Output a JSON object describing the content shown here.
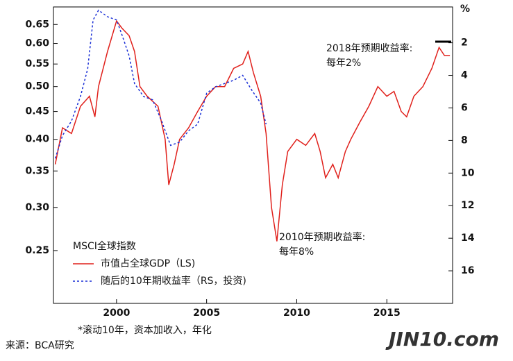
{
  "chart_data": {
    "type": "line",
    "log_y": true,
    "x_ticks_prefix": null,
    "xlim": [
      1996.5,
      2018.65
    ],
    "xticks": [
      2000,
      2005,
      2010,
      2015
    ],
    "ylim": [
      0.2,
      0.7
    ],
    "yticks": [
      {
        "value": 0.25,
        "label": "0.25"
      },
      {
        "value": 0.3,
        "label": "0.30"
      },
      {
        "value": 0.35,
        "label": "0.35"
      },
      {
        "value": 0.4,
        "label": "0.40"
      },
      {
        "value": 0.45,
        "label": "0.45"
      },
      {
        "value": 0.5,
        "label": "0.50"
      },
      {
        "value": 0.55,
        "label": "0.55"
      },
      {
        "value": 0.6,
        "label": "0.60"
      },
      {
        "value": 0.65,
        "label": "0.65"
      }
    ],
    "y2lim": [
      18,
      -0.2
    ],
    "y2ticks": [
      2,
      4,
      6,
      8,
      10,
      12,
      14,
      16
    ],
    "y2_label": "%",
    "legend_title": "MSCI全球指数",
    "series": [
      {
        "name": "市值占全球GDP（LS)",
        "color": "#e0201b",
        "dash": false,
        "x": [
          1996.6,
          1997.0,
          1997.5,
          1998.0,
          1998.5,
          1998.8,
          1999.0,
          1999.5,
          2000.0,
          2000.3,
          2000.7,
          2001.0,
          2001.3,
          2001.7,
          2002.0,
          2002.3,
          2002.7,
          2002.9,
          2003.2,
          2003.5,
          2004.0,
          2004.5,
          2005.0,
          2005.5,
          2006.0,
          2006.5,
          2007.0,
          2007.3,
          2007.6,
          2008.0,
          2008.3,
          2008.6,
          2008.9,
          2009.2,
          2009.5,
          2010.0,
          2010.5,
          2011.0,
          2011.3,
          2011.6,
          2012.0,
          2012.3,
          2012.7,
          2013.0,
          2013.5,
          2014.0,
          2014.5,
          2015.0,
          2015.4,
          2015.8,
          2016.1,
          2016.5,
          2017.0,
          2017.5,
          2017.9,
          2018.2,
          2018.5
        ],
        "values": [
          0.36,
          0.42,
          0.41,
          0.46,
          0.48,
          0.44,
          0.5,
          0.58,
          0.66,
          0.64,
          0.62,
          0.58,
          0.5,
          0.48,
          0.47,
          0.46,
          0.4,
          0.33,
          0.36,
          0.4,
          0.42,
          0.45,
          0.48,
          0.5,
          0.5,
          0.54,
          0.55,
          0.58,
          0.53,
          0.48,
          0.41,
          0.3,
          0.26,
          0.33,
          0.38,
          0.4,
          0.39,
          0.41,
          0.38,
          0.34,
          0.36,
          0.34,
          0.38,
          0.4,
          0.43,
          0.46,
          0.5,
          0.48,
          0.49,
          0.45,
          0.44,
          0.48,
          0.5,
          0.54,
          0.59,
          0.57,
          0.57
        ]
      },
      {
        "name": "随后的10年期收益率（RS，投资)",
        "color": "#1a2fd6",
        "dash": true,
        "axis": "y2",
        "x": [
          1996.6,
          1997.0,
          1997.5,
          1998.0,
          1998.4,
          1998.7,
          1999.0,
          1999.5,
          2000.0,
          2000.3,
          2000.7,
          2001.0,
          2001.5,
          2002.0,
          2002.5,
          2003.0,
          2003.5,
          2004.0,
          2004.5,
          2005.0,
          2005.5,
          2006.0,
          2006.5,
          2007.0,
          2007.5,
          2008.0,
          2008.3
        ],
        "values": [
          9.1,
          7.7,
          6.8,
          5.3,
          3.6,
          0.6,
          0.0,
          0.4,
          0.6,
          1.5,
          2.8,
          4.5,
          5.3,
          5.5,
          6.8,
          8.3,
          8.1,
          7.4,
          7.0,
          5.1,
          4.7,
          4.5,
          4.3,
          4.0,
          4.9,
          5.7,
          7.0
        ]
      }
    ],
    "annotations": [
      "2018年预期收益率:",
      "每年2%",
      "2010年预期收益率:",
      "每年8%"
    ],
    "footnote": "*滚动10年，资本加收入，年化",
    "source": "来源：BCA研究",
    "watermark": "JIN10.com"
  }
}
